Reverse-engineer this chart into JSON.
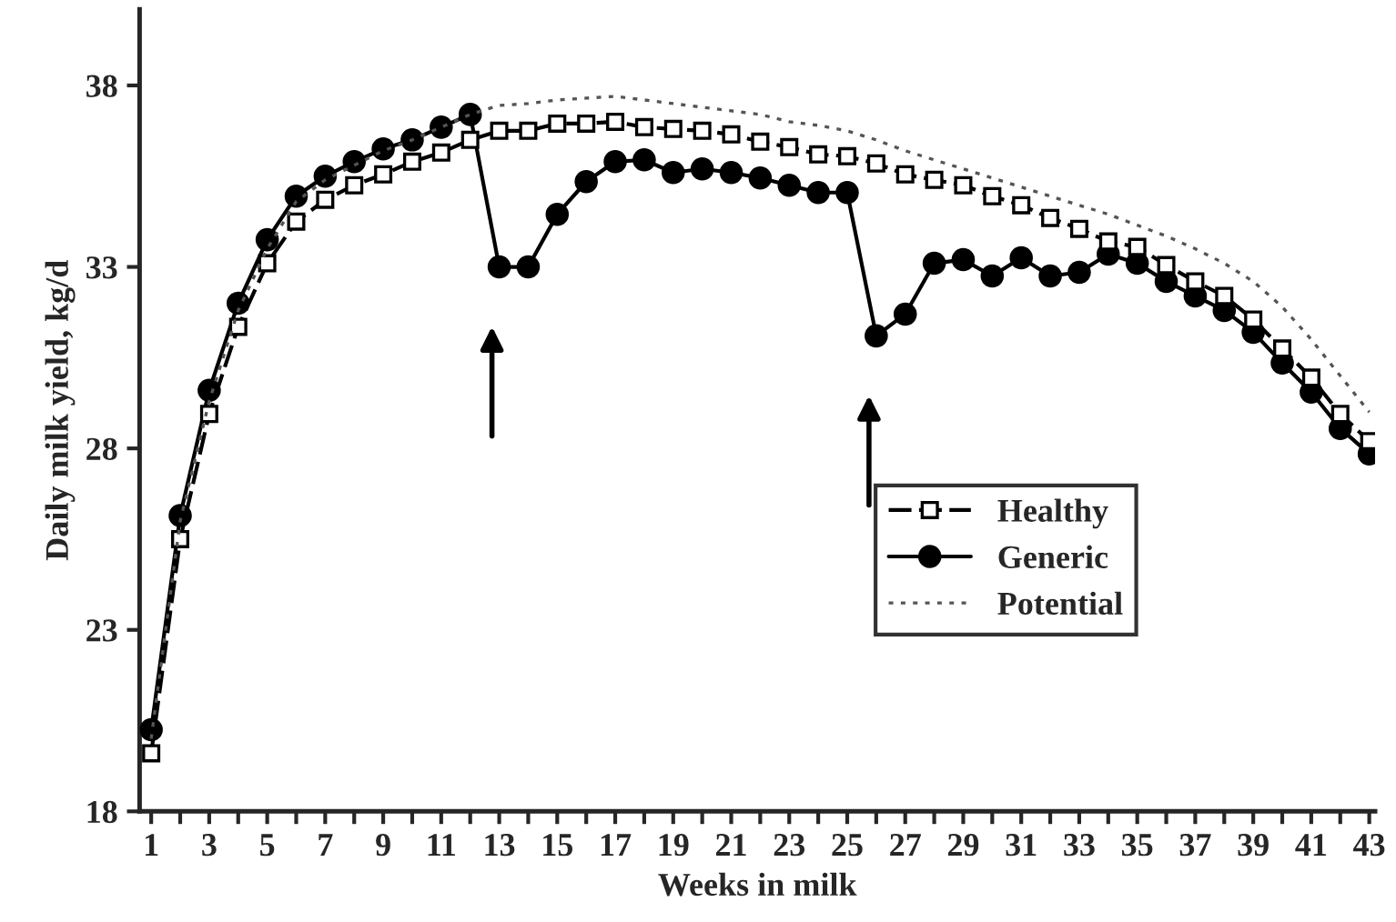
{
  "chart_data": {
    "type": "line",
    "xlabel": "Weeks in milk",
    "ylabel": "Daily milk yield, kg/d",
    "x": [
      1,
      2,
      3,
      4,
      5,
      6,
      7,
      8,
      9,
      10,
      11,
      12,
      13,
      14,
      15,
      16,
      17,
      18,
      19,
      20,
      21,
      22,
      23,
      24,
      25,
      26,
      27,
      28,
      29,
      30,
      31,
      32,
      33,
      34,
      35,
      36,
      37,
      38,
      39,
      40,
      41,
      42,
      43
    ],
    "xlim": [
      0.6,
      43.2
    ],
    "xticks": [
      1,
      {
        "value": 2,
        "label": null
      },
      3,
      {
        "value": 4,
        "label": null
      },
      5,
      {
        "value": 6,
        "label": null
      },
      7,
      {
        "value": 8,
        "label": null
      },
      9,
      {
        "value": 10,
        "label": null
      },
      11,
      {
        "value": 12,
        "label": null
      },
      13,
      {
        "value": 14,
        "label": null
      },
      15,
      {
        "value": 16,
        "label": null
      },
      17,
      {
        "value": 18,
        "label": null
      },
      19,
      {
        "value": 20,
        "label": null
      },
      21,
      {
        "value": 22,
        "label": null
      },
      23,
      {
        "value": 24,
        "label": null
      },
      25,
      {
        "value": 26,
        "label": null
      },
      27,
      {
        "value": 28,
        "label": null
      },
      29,
      {
        "value": 30,
        "label": null
      },
      31,
      {
        "value": 32,
        "label": null
      },
      33,
      {
        "value": 34,
        "label": null
      },
      35,
      {
        "value": 36,
        "label": null
      },
      37,
      {
        "value": 38,
        "label": null
      },
      39,
      {
        "value": 40,
        "label": null
      },
      41,
      {
        "value": 42,
        "label": null
      },
      43
    ],
    "ylim": [
      18,
      40.1
    ],
    "yticks": [
      18,
      23,
      28,
      33,
      38
    ],
    "grid": false,
    "legend": "lower right",
    "series": [
      {
        "name": "Healthy",
        "color": "#000000",
        "marker": "square",
        "line_style": "dashed",
        "values": [
          19.6,
          25.5,
          28.95,
          31.35,
          33.1,
          34.25,
          34.85,
          35.25,
          35.55,
          35.9,
          36.15,
          36.5,
          36.75,
          36.75,
          36.95,
          36.95,
          37.0,
          36.85,
          36.8,
          36.75,
          36.65,
          36.45,
          36.3,
          36.1,
          36.05,
          35.85,
          35.55,
          35.4,
          35.25,
          34.95,
          34.7,
          34.35,
          34.05,
          33.7,
          33.55,
          33.05,
          32.6,
          32.2,
          31.55,
          30.75,
          29.95,
          28.95,
          28.2
        ]
      },
      {
        "name": "Generic",
        "color": "#000000",
        "marker": "circle",
        "line_style": "solid",
        "values": [
          20.25,
          26.15,
          29.6,
          32.0,
          33.75,
          34.95,
          35.5,
          35.9,
          36.25,
          36.5,
          36.85,
          37.2,
          33.0,
          33.0,
          34.45,
          35.35,
          35.9,
          35.95,
          35.6,
          35.7,
          35.6,
          35.45,
          35.25,
          35.05,
          35.05,
          31.1,
          31.7,
          33.1,
          33.2,
          32.75,
          33.25,
          32.75,
          32.85,
          33.35,
          33.1,
          32.6,
          32.2,
          31.8,
          31.2,
          30.35,
          29.55,
          28.55,
          27.85
        ]
      },
      {
        "name": "Potential",
        "color": "#555555",
        "marker": "none",
        "line_style": "dotted",
        "values": [
          20.0,
          26.0,
          29.3,
          31.8,
          33.5,
          34.8,
          35.4,
          35.8,
          36.2,
          36.5,
          36.85,
          37.2,
          37.45,
          37.5,
          37.6,
          37.65,
          37.7,
          37.6,
          37.5,
          37.4,
          37.3,
          37.2,
          37.0,
          36.9,
          36.75,
          36.5,
          36.2,
          35.95,
          35.7,
          35.45,
          35.2,
          34.95,
          34.7,
          34.45,
          34.15,
          33.85,
          33.5,
          33.1,
          32.6,
          31.9,
          31.0,
          30.0,
          29.0
        ]
      }
    ]
  }
}
